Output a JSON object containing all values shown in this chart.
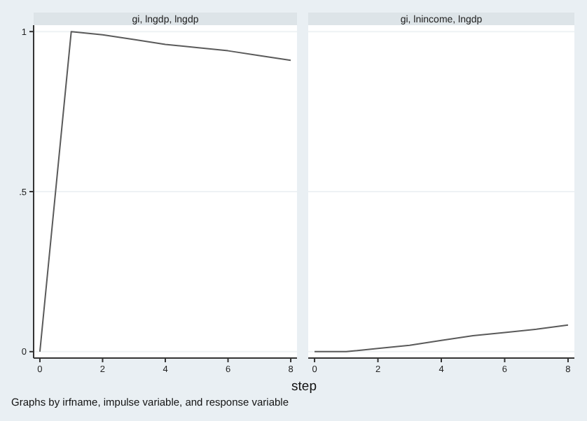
{
  "chart_data": [
    {
      "type": "line",
      "title": "gi, lngdp, lngdp",
      "xlabel": "step",
      "annotations": [
        "Graphs by irfname, impulse variable, and response variable"
      ],
      "x": [
        0,
        1,
        2,
        3,
        4,
        5,
        6,
        7,
        8
      ],
      "series": [
        {
          "color": "#5a5a5a",
          "values": [
            0,
            1,
            0.99,
            0.975,
            0.96,
            0.95,
            0.94,
            0.925,
            0.91
          ]
        }
      ],
      "xlim": [
        -0.2,
        8.2
      ],
      "xticks": [
        0,
        2,
        4,
        6,
        8
      ],
      "ylim": [
        -0.02,
        1.02
      ],
      "yticks": [
        {
          "value": 0,
          "label": "0"
        },
        {
          "value": 0.5,
          "label": ".5"
        },
        {
          "value": 1,
          "label": "1"
        }
      ],
      "grid": "y"
    },
    {
      "type": "line",
      "title": "gi, lnincome, lngdp",
      "x": [
        0,
        1,
        2,
        3,
        4,
        5,
        6,
        7,
        8
      ],
      "series": [
        {
          "color": "#5a5a5a",
          "values": [
            0,
            0,
            0.01,
            0.02,
            0.035,
            0.05,
            0.06,
            0.07,
            0.083
          ]
        }
      ],
      "xlim": [
        -0.2,
        8.2
      ],
      "xticks": [
        0,
        2,
        4,
        6,
        8
      ],
      "ylim": [
        -0.02,
        1.02
      ],
      "yticks": [
        {
          "value": 0,
          "label": null
        },
        {
          "value": 0.5,
          "label": null
        },
        {
          "value": 1,
          "label": null
        }
      ],
      "grid": "y",
      "tick_labels": "x"
    }
  ]
}
